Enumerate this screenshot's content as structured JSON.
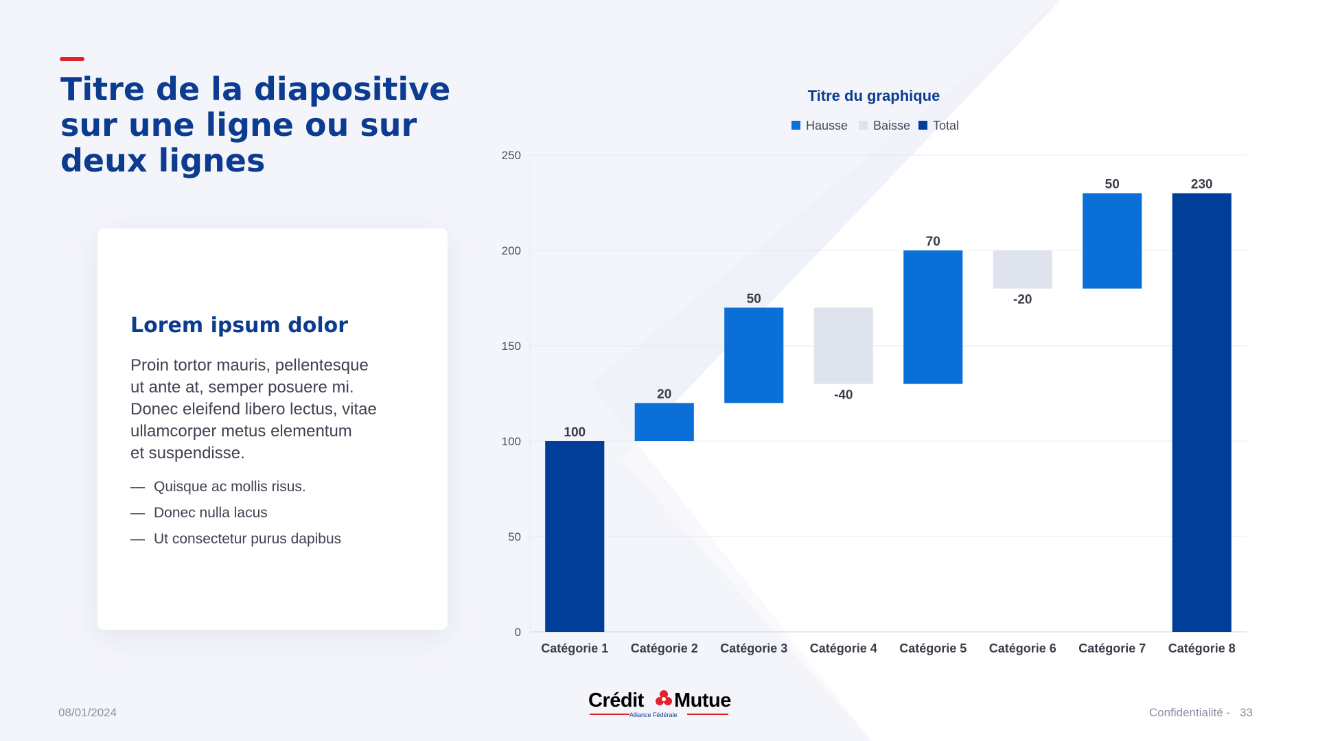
{
  "slide": {
    "title_lines": [
      "Titre de la diapositive",
      "sur une ligne ou sur",
      "deux lignes"
    ]
  },
  "card": {
    "heading": "Lorem ipsum dolor",
    "paragraph_lines": [
      "Proin tortor mauris, pellentesque",
      "ut ante at, semper posuere mi.",
      "Donec eleifend libero lectus, vitae",
      "ullamcorper metus elementum",
      "et suspendisse."
    ],
    "bullets": [
      "Quisque ac mollis risus.",
      "Donec nulla lacus",
      "Ut consectetur purus dapibus"
    ],
    "bullet_marker": "—"
  },
  "footer": {
    "date": "08/01/2024",
    "confidentiality": "Confidentialité -",
    "page_number": "33",
    "logo_text_left": "Crédit",
    "logo_text_right": "Mutuel",
    "logo_subtitle": "Alliance Fédérale"
  },
  "colors": {
    "title_blue": "#0c3c8f",
    "accent_red": "#e0232b",
    "increase": "#0a6fd6",
    "decrease": "#dfe3ee",
    "total": "#003e99"
  },
  "chart_data": {
    "type": "bar",
    "subtype": "waterfall",
    "title": "Titre du graphique",
    "categories": [
      "Catégorie 1",
      "Catégorie 2",
      "Catégorie 3",
      "Catégorie 4",
      "Catégorie 5",
      "Catégorie 6",
      "Catégorie 7",
      "Catégorie 8"
    ],
    "values": [
      100,
      20,
      50,
      -40,
      70,
      -20,
      50,
      230
    ],
    "kinds": [
      "total",
      "increase",
      "increase",
      "decrease",
      "increase",
      "decrease",
      "increase",
      "total"
    ],
    "data_labels": [
      "100",
      "20",
      "50",
      "-40",
      "70",
      "-20",
      "50",
      "230"
    ],
    "legend": [
      {
        "name": "Hausse",
        "kind": "increase"
      },
      {
        "name": "Baisse",
        "kind": "decrease"
      },
      {
        "name": "Total",
        "kind": "total"
      }
    ],
    "legend_position": "top",
    "ylim": [
      0,
      250
    ],
    "yticks": [
      0,
      50,
      100,
      150,
      200,
      250
    ],
    "grid": true,
    "xlabel": "",
    "ylabel": ""
  }
}
